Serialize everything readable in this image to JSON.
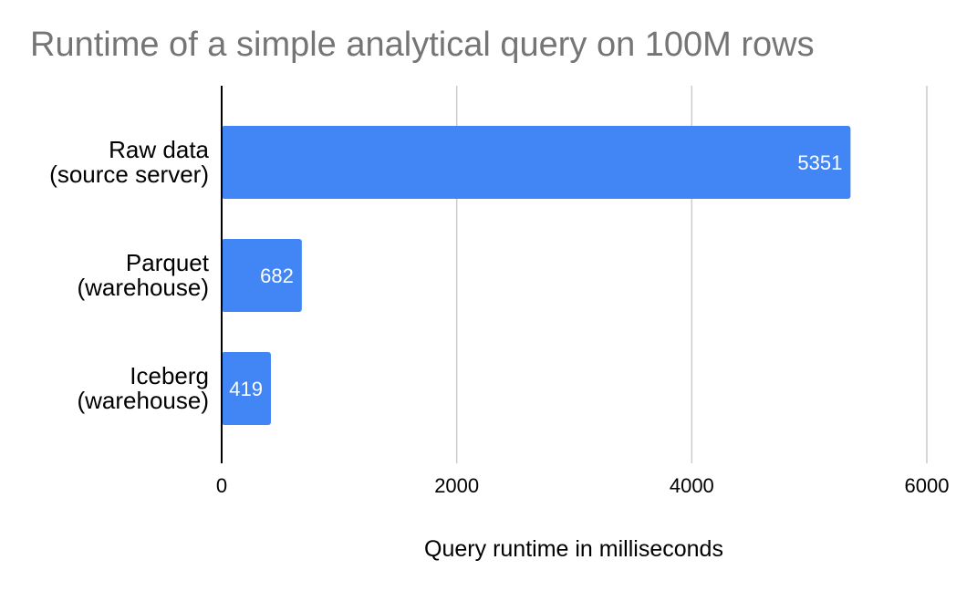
{
  "colors": {
    "bar": "#4285f4",
    "grid": "#cccccc",
    "axis": "#000000",
    "title": "#757575"
  },
  "chart_data": {
    "type": "bar",
    "orientation": "horizontal",
    "title": "Runtime of a simple analytical query on 100M rows",
    "xlabel": "Query runtime in milliseconds",
    "ylabel": "",
    "categories": [
      [
        "Raw data",
        "(source server)"
      ],
      [
        "Parquet",
        "(warehouse)"
      ],
      [
        "Iceberg",
        "(warehouse)"
      ]
    ],
    "values": [
      5351,
      682,
      419
    ],
    "data_labels": [
      "5351",
      "682",
      "419"
    ],
    "xlim": [
      0,
      6000
    ],
    "xticks": [
      0,
      2000,
      4000,
      6000
    ],
    "xtick_labels": [
      "0",
      "2000",
      "4000",
      "6000"
    ],
    "grid": true,
    "legend": "none"
  }
}
